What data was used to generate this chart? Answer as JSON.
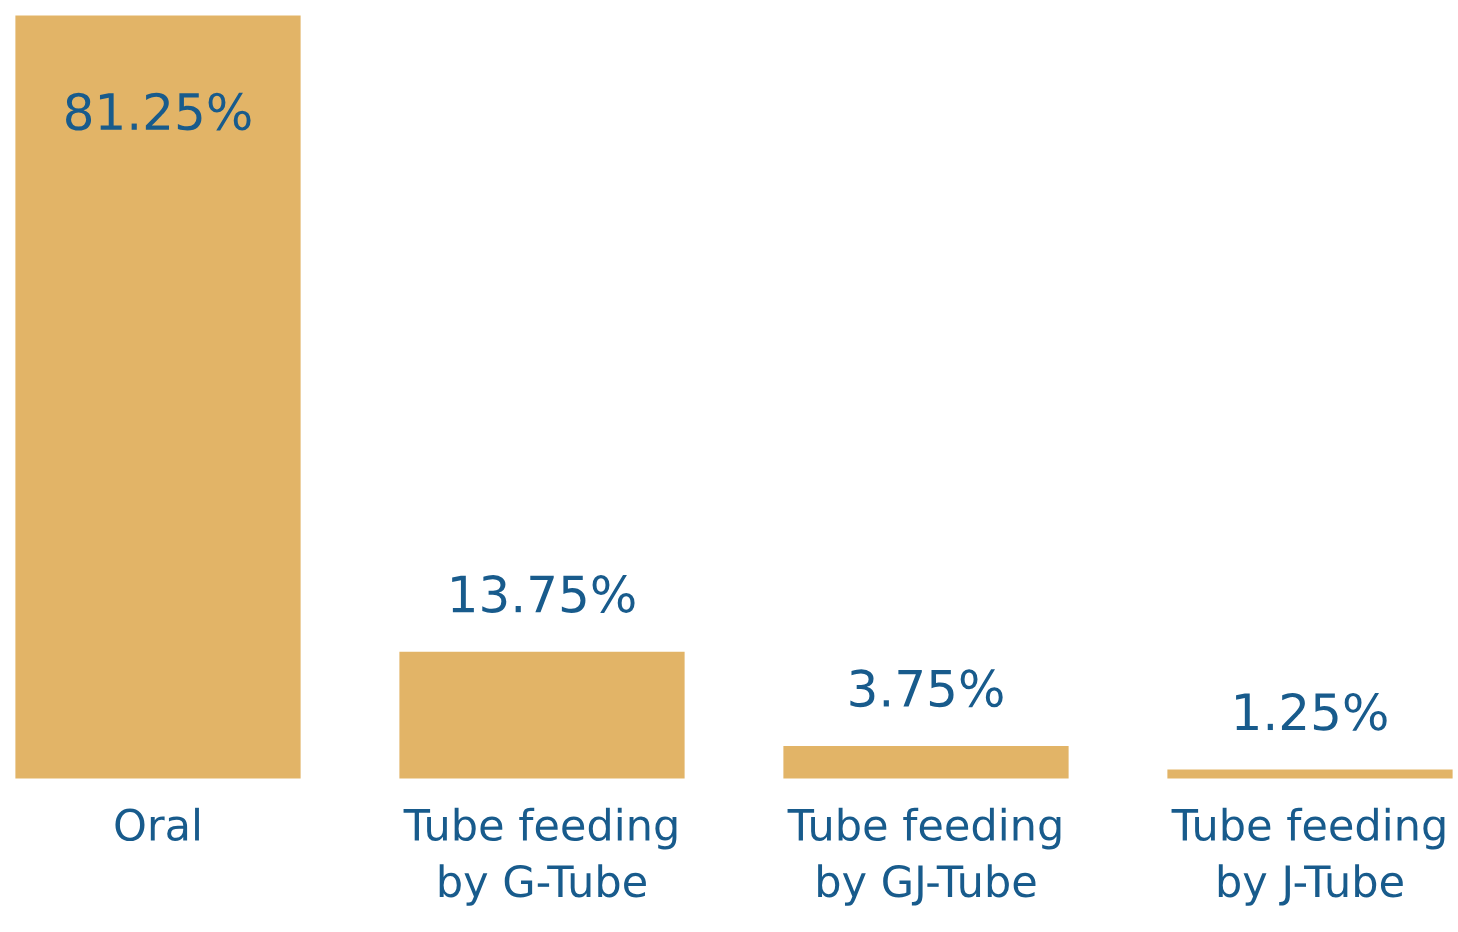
{
  "chart_data": {
    "type": "bar",
    "categories": [
      "Oral",
      "Tube feeding\nby G-Tube",
      "Tube feeding\nby GJ-Tube",
      "Tube feeding\nby J-Tube"
    ],
    "values": [
      81.25,
      13.75,
      3.75,
      1.25
    ],
    "color": "#e2b467",
    "value_labels": [
      "81.25%",
      "13.75%",
      "3.75%",
      "1.25%"
    ],
    "tick_labels": "x"
  }
}
